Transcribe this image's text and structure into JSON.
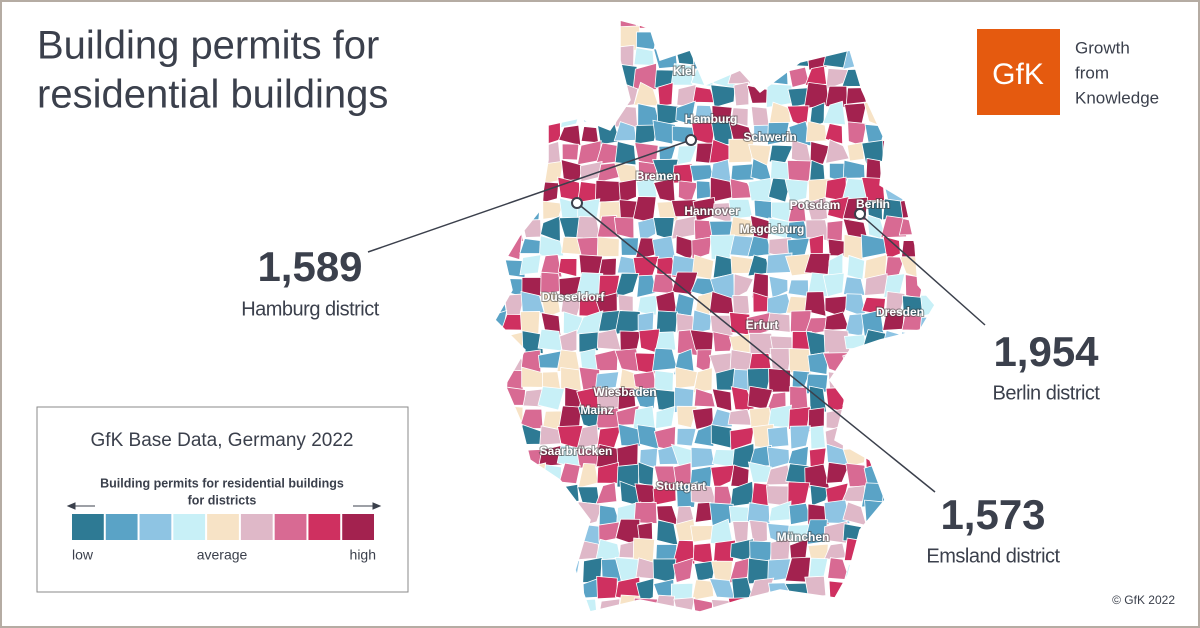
{
  "title_lines": [
    "Building permits for",
    "residential buildings"
  ],
  "logo": {
    "mark": "GfK",
    "tagline": [
      "Growth",
      "from",
      "Knowledge"
    ]
  },
  "cities": [
    "Kiel",
    "Hamburg",
    "Schwerin",
    "Bremen",
    "Hannover",
    "Potsdam",
    "Berlin",
    "Magdeburg",
    "Düsseldorf",
    "Erfurt",
    "Dresden",
    "Wiesbaden",
    "Mainz",
    "Saarbrücken",
    "Stuttgart",
    "München"
  ],
  "callouts": [
    {
      "value": "1,589",
      "label": "Hamburg district"
    },
    {
      "value": "1,954",
      "label": "Berlin district"
    },
    {
      "value": "1,573",
      "label": "Emsland district"
    }
  ],
  "legend": {
    "heading": "GfK Base Data, Germany 2022",
    "subtitle": [
      "Building permits for residential buildings",
      "for districts"
    ],
    "colors": [
      "#2e7a94",
      "#5aa3c6",
      "#8ec4e3",
      "#c8f0f7",
      "#f7e3c6",
      "#dfb8c8",
      "#d86a93",
      "#cf3060",
      "#a3224f"
    ],
    "labels": [
      "low",
      "average",
      "high"
    ]
  },
  "copyright": "© GfK 2022"
}
